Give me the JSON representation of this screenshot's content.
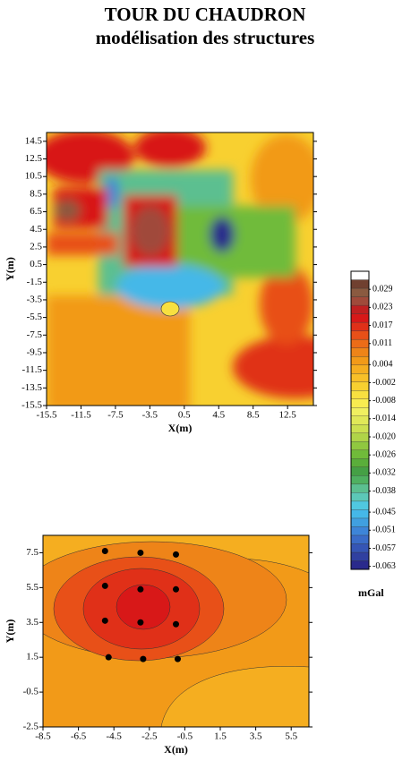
{
  "title": "TOUR DU CHAUDRON",
  "subtitle": "modélisation des structures",
  "chart_data": [
    {
      "type": "contour",
      "xlabel": "X(m)",
      "ylabel": "Y(m)",
      "xlim": [
        -15.5,
        15.5
      ],
      "xticks": [
        -15.5,
        -11.5,
        -7.5,
        -3.5,
        0.5,
        4.5,
        8.5,
        12.5
      ],
      "ylim": [
        -15.5,
        15.5
      ],
      "yticks": [
        -15.5,
        -13.5,
        -11.5,
        -9.5,
        -7.5,
        -5.5,
        -3.5,
        -1.5,
        0.5,
        2.5,
        4.5,
        6.5,
        8.5,
        10.5,
        12.5,
        14.5
      ],
      "colorbar": {
        "label": "mGal",
        "clim": [
          -0.064,
          0.035
        ],
        "ticks": [
          0.029,
          0.023,
          0.017,
          0.011,
          0.004,
          -0.002,
          -0.008,
          -0.014,
          {
            "value": -0.02,
            "label": "-0.020"
          },
          -0.026,
          -0.032,
          -0.038,
          -0.045,
          -0.051,
          -0.057,
          -0.063
        ],
        "colors": [
          "#2a2a8c",
          "#3040a0",
          "#3555b5",
          "#3a6cc8",
          "#3d85d8",
          "#40a0e0",
          "#45b8e8",
          "#50c8e0",
          "#5cc8b8",
          "#5bbf90",
          "#4fb060",
          "#45a045",
          "#5aae3a",
          "#70bb3a",
          "#90c840",
          "#b0d448",
          "#cce050",
          "#e0e858",
          "#f0f060",
          "#f8ec50",
          "#f8e040",
          "#f8d030",
          "#f8c028",
          "#f5ae20",
          "#f29a18",
          "#ee8418",
          "#ec6c18",
          "#e85018",
          "#e03018",
          "#d81818",
          "#c02020",
          "#a04a3a",
          "#8a5a40",
          "#704030",
          "#ffffff"
        ]
      }
    },
    {
      "type": "contour",
      "xlabel": "X(m)",
      "ylabel": "Y(m)",
      "xlim": [
        -8.5,
        6.5
      ],
      "xticks": [
        -8.5,
        -6.5,
        -4.5,
        -2.5,
        -0.5,
        1.5,
        3.5,
        5.5
      ],
      "ylim": [
        -2.5,
        8.5
      ],
      "yticks": [
        -2.5,
        -0.5,
        1.5,
        3.5,
        5.5,
        7.5
      ],
      "points": {
        "x": [
          -5,
          -3,
          -1,
          -5,
          -3,
          -1,
          -5,
          -3,
          -1,
          -4.8,
          -2.85,
          -0.9
        ],
        "y": [
          7.6,
          7.5,
          7.4,
          5.6,
          5.4,
          5.4,
          3.6,
          3.5,
          3.4,
          1.5,
          1.4,
          1.4
        ],
        "color": "#000000"
      }
    }
  ]
}
